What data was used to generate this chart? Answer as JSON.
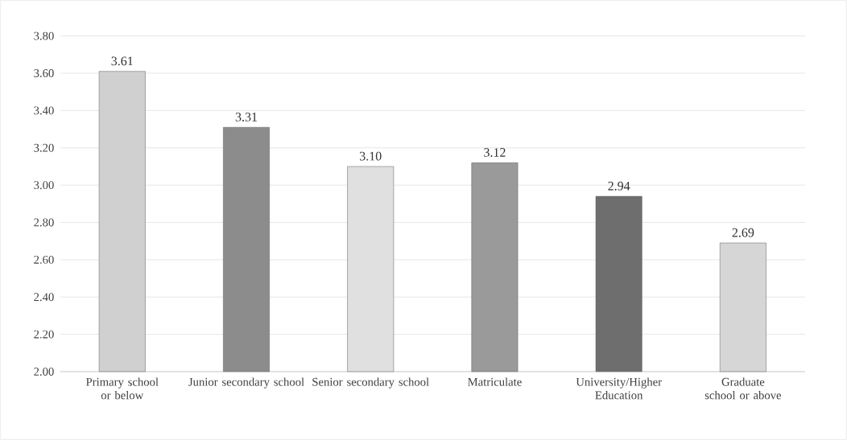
{
  "chart_data": {
    "type": "bar",
    "categories": [
      "Primary school or below",
      "Junior secondary school",
      "Senior secondary school",
      "Matriculate",
      "University/Higher Education",
      "Graduate school or above"
    ],
    "values": [
      3.61,
      3.31,
      3.1,
      3.12,
      2.94,
      2.69
    ],
    "value_labels": [
      "3.61",
      "3.31",
      "3.10",
      "3.12",
      "2.94",
      "2.69"
    ],
    "colors": [
      "#d0d0d0",
      "#8c8c8c",
      "#e0e0e0",
      "#9a9a9a",
      "#6e6e6e",
      "#d6d6d6"
    ],
    "ylim": [
      2.0,
      3.8
    ],
    "yticks": [
      {
        "value": 2.0,
        "label": "2.00"
      },
      {
        "value": 2.2,
        "label": "2.20"
      },
      {
        "value": 2.4,
        "label": "2.40"
      },
      {
        "value": 2.6,
        "label": "2.60"
      },
      {
        "value": 2.8,
        "label": "2.80"
      },
      {
        "value": 3.0,
        "label": "3.00"
      },
      {
        "value": 3.2,
        "label": "3.20"
      },
      {
        "value": 3.4,
        "label": "3.40"
      },
      {
        "value": 3.6,
        "label": "3.60"
      },
      {
        "value": 3.8,
        "label": "3.80"
      }
    ],
    "grid": "y"
  }
}
